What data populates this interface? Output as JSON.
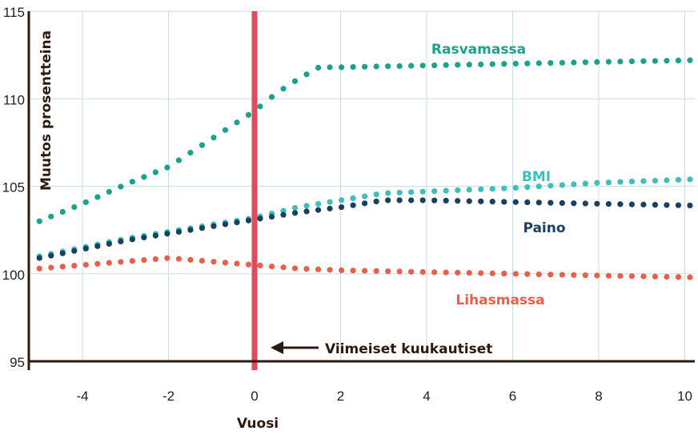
{
  "chart_data": {
    "type": "scatter",
    "title": "",
    "xlabel": "Vuosi",
    "ylabel": "Muutos prosentteina",
    "xlim": [
      -5.25,
      10.3
    ],
    "ylim": [
      95,
      115
    ],
    "x_ticks": [
      -4,
      -2,
      0,
      2,
      4,
      6,
      8,
      10
    ],
    "y_ticks": [
      95,
      100,
      105,
      110,
      115
    ],
    "grid": true,
    "marker_style": "dotted",
    "annotation": {
      "x": 0,
      "text": "Viimeiset kuukautiset",
      "color": "#e04a5c"
    },
    "series": [
      {
        "name": "Rasvamassa",
        "color": "#1aa38a",
        "x": [
          -5,
          -4,
          -3,
          -2,
          -1,
          0,
          0.5,
          1,
          1.5,
          2,
          4,
          6,
          8,
          10.2
        ],
        "y": [
          103,
          104,
          105.1,
          106.1,
          107.7,
          109.3,
          110.3,
          111.1,
          111.8,
          111.8,
          111.9,
          112,
          112.1,
          112.2
        ]
      },
      {
        "name": "BMI",
        "color": "#3cc0b9",
        "x": [
          -5,
          -4,
          -3,
          -2,
          -1,
          0,
          1,
          2,
          3,
          4,
          6,
          8,
          10.2
        ],
        "y": [
          101,
          101.5,
          102,
          102.4,
          102.8,
          103.2,
          103.8,
          104.2,
          104.6,
          104.7,
          104.9,
          105.2,
          105.4
        ]
      },
      {
        "name": "Paino",
        "color": "#1b3f5f",
        "x": [
          -5,
          -4,
          -3,
          -2,
          -1,
          0,
          1,
          2,
          3,
          4,
          6,
          8,
          10.2
        ],
        "y": [
          100.9,
          101.4,
          101.9,
          102.3,
          102.7,
          103.1,
          103.5,
          103.8,
          104.2,
          104.2,
          104.1,
          104,
          103.9
        ]
      },
      {
        "name": "Lihasmassa",
        "color": "#e8604a",
        "x": [
          -5,
          -4,
          -3,
          -2,
          -1,
          0,
          1,
          2,
          4,
          6,
          8,
          10.2
        ],
        "y": [
          100.3,
          100.5,
          100.7,
          100.9,
          100.7,
          100.5,
          100.3,
          100.2,
          100.1,
          100,
          99.9,
          99.8
        ]
      }
    ]
  }
}
